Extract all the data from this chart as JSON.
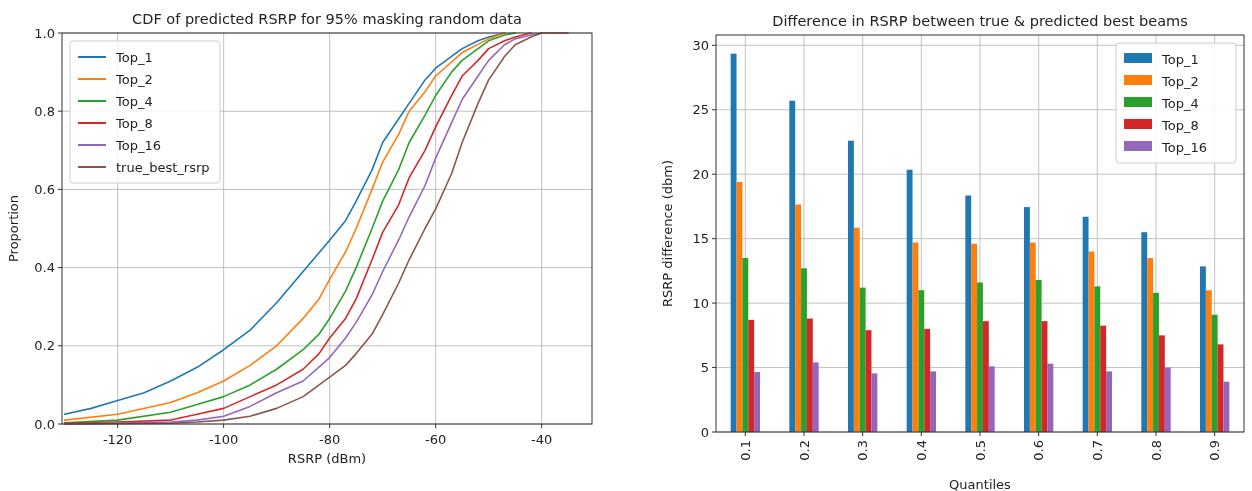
{
  "chart_data": [
    {
      "type": "line",
      "title": "CDF of predicted RSRP for 95% masking random data",
      "xlabel": "RSRP (dBm)",
      "ylabel": "Proportion",
      "xlim": [
        -130.5,
        -30.5
      ],
      "xticks": [
        -120,
        -100,
        -80,
        -60,
        -40
      ],
      "ylim": [
        0,
        1
      ],
      "yticks": [
        {
          "value": 0,
          "label": "0.0"
        },
        0.2,
        0.4,
        0.6,
        0.8,
        {
          "value": 1,
          "label": "1.0"
        }
      ],
      "grid": true,
      "legend": "top left",
      "series": [
        {
          "name": "Top_1",
          "color": "#1f77b4",
          "x": [
            -130,
            -125,
            -120,
            -115,
            -110,
            -105,
            -100,
            -95,
            -90,
            -85,
            -80,
            -77,
            -75,
            -72,
            -70,
            -67,
            -65,
            -62,
            -60,
            -57,
            -55,
            -52,
            -50,
            -47
          ],
          "values": [
            0.025,
            0.04,
            0.06,
            0.08,
            0.11,
            0.145,
            0.19,
            0.24,
            0.31,
            0.39,
            0.47,
            0.52,
            0.57,
            0.65,
            0.72,
            0.78,
            0.82,
            0.88,
            0.91,
            0.94,
            0.96,
            0.98,
            0.99,
            1
          ]
        },
        {
          "name": "Top_2",
          "color": "#ff7f0e",
          "x": [
            -130,
            -120,
            -110,
            -105,
            -100,
            -95,
            -90,
            -85,
            -82,
            -80,
            -77,
            -75,
            -72,
            -70,
            -67,
            -65,
            -62,
            -60,
            -55,
            -50,
            -47
          ],
          "values": [
            0.01,
            0.025,
            0.055,
            0.08,
            0.11,
            0.15,
            0.2,
            0.27,
            0.32,
            0.37,
            0.44,
            0.5,
            0.6,
            0.67,
            0.74,
            0.8,
            0.85,
            0.89,
            0.95,
            0.985,
            1
          ]
        },
        {
          "name": "Top_4",
          "color": "#2ca02c",
          "x": [
            -130,
            -120,
            -110,
            -105,
            -100,
            -95,
            -90,
            -85,
            -82,
            -80,
            -77,
            -75,
            -72,
            -70,
            -67,
            -65,
            -62,
            -60,
            -57,
            -55,
            -52,
            -50,
            -47,
            -45
          ],
          "values": [
            0.003,
            0.01,
            0.03,
            0.05,
            0.07,
            0.1,
            0.14,
            0.19,
            0.23,
            0.27,
            0.34,
            0.4,
            0.5,
            0.57,
            0.65,
            0.72,
            0.79,
            0.84,
            0.9,
            0.93,
            0.96,
            0.98,
            0.995,
            1
          ]
        },
        {
          "name": "Top_8",
          "color": "#d62728",
          "x": [
            -130,
            -120,
            -110,
            -105,
            -100,
            -95,
            -90,
            -85,
            -82,
            -80,
            -77,
            -75,
            -72,
            -70,
            -67,
            -65,
            -62,
            -60,
            -57,
            -55,
            -52,
            -50,
            -47,
            -45,
            -42
          ],
          "values": [
            0.002,
            0.005,
            0.01,
            0.025,
            0.04,
            0.07,
            0.1,
            0.14,
            0.18,
            0.22,
            0.27,
            0.32,
            0.42,
            0.49,
            0.56,
            0.63,
            0.7,
            0.76,
            0.84,
            0.89,
            0.93,
            0.96,
            0.98,
            0.99,
            1
          ]
        },
        {
          "name": "Top_16",
          "color": "#9467bd",
          "x": [
            -130,
            -110,
            -105,
            -100,
            -95,
            -90,
            -85,
            -80,
            -77,
            -75,
            -72,
            -70,
            -67,
            -65,
            -62,
            -60,
            -57,
            -55,
            -52,
            -50,
            -47,
            -45,
            -42,
            -40
          ],
          "values": [
            0,
            0.005,
            0.01,
            0.02,
            0.045,
            0.08,
            0.11,
            0.17,
            0.22,
            0.26,
            0.33,
            0.39,
            0.47,
            0.53,
            0.61,
            0.68,
            0.77,
            0.83,
            0.89,
            0.93,
            0.97,
            0.985,
            0.995,
            1
          ]
        },
        {
          "name": "true_best_rsrp",
          "color": "#8c564b",
          "x": [
            -130,
            -110,
            -105,
            -100,
            -95,
            -90,
            -85,
            -80,
            -77,
            -75,
            -72,
            -70,
            -67,
            -65,
            -62,
            -60,
            -57,
            -55,
            -52,
            -50,
            -47,
            -45,
            -42,
            -40,
            -35
          ],
          "values": [
            0,
            0.002,
            0.005,
            0.01,
            0.02,
            0.04,
            0.07,
            0.12,
            0.15,
            0.18,
            0.23,
            0.28,
            0.36,
            0.42,
            0.5,
            0.55,
            0.64,
            0.72,
            0.82,
            0.88,
            0.94,
            0.97,
            0.99,
            1,
            1
          ]
        }
      ]
    },
    {
      "type": "bar",
      "title": "Difference in RSRP between true & predicted best beams",
      "xlabel": "Quantiles",
      "ylabel": "RSRP difference (dbm)",
      "categories": [
        "0.1",
        "0.2",
        "0.3",
        "0.4",
        "0.5",
        "0.6",
        "0.7",
        "0.8",
        "0.9"
      ],
      "ylim": [
        0,
        30.8
      ],
      "yticks": [
        0,
        5,
        10,
        15,
        20,
        25,
        30
      ],
      "grid": true,
      "legend": "top right",
      "series": [
        {
          "name": "Top_1",
          "color": "#1f77b4",
          "values": [
            29.35,
            25.7,
            22.6,
            20.35,
            18.35,
            17.45,
            16.7,
            15.5,
            12.85
          ]
        },
        {
          "name": "Top_2",
          "color": "#ff7f0e",
          "values": [
            19.4,
            17.65,
            15.85,
            14.7,
            14.6,
            14.7,
            14.0,
            13.5,
            11.0
          ]
        },
        {
          "name": "Top_4",
          "color": "#2ca02c",
          "values": [
            13.5,
            12.7,
            11.2,
            11.0,
            11.6,
            11.8,
            11.3,
            10.8,
            9.1
          ]
        },
        {
          "name": "Top_8",
          "color": "#d62728",
          "values": [
            8.7,
            8.8,
            7.9,
            8.0,
            8.6,
            8.6,
            8.25,
            7.5,
            6.8
          ]
        },
        {
          "name": "Top_16",
          "color": "#9467bd",
          "values": [
            4.65,
            5.4,
            4.55,
            4.7,
            5.1,
            5.3,
            4.7,
            5.0,
            3.9
          ]
        }
      ]
    }
  ]
}
